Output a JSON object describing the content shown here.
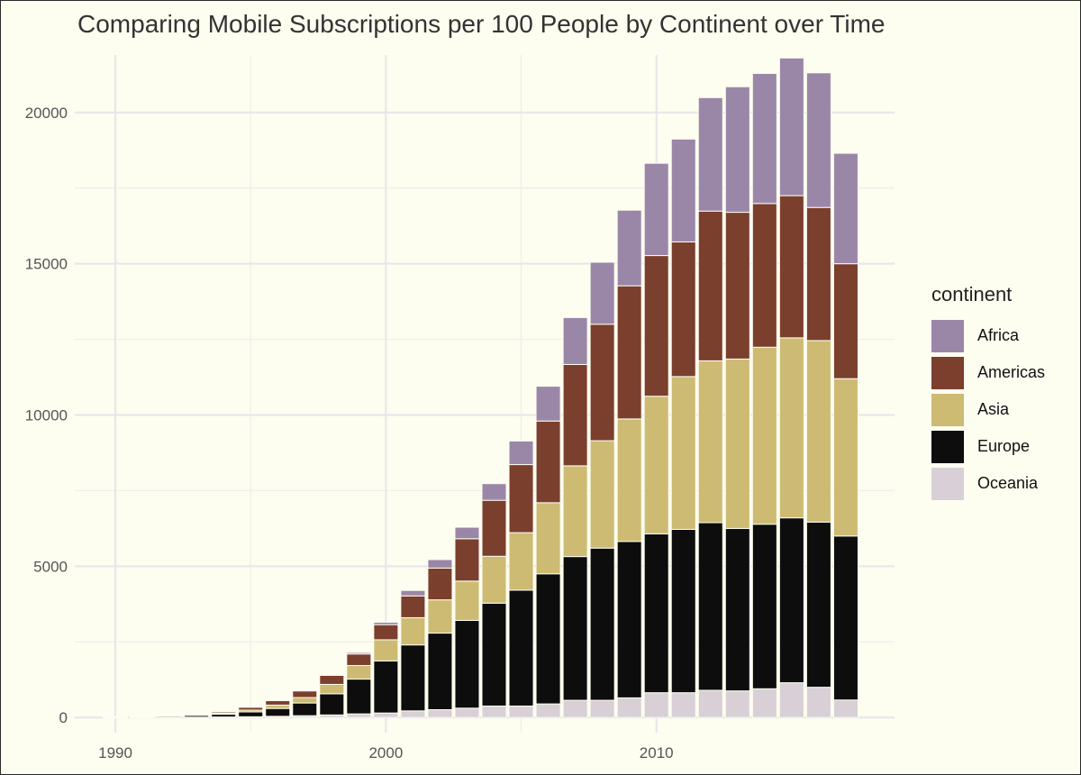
{
  "title": "Comparing Mobile Subscriptions per 100 People by Continent over Time",
  "legend": {
    "title": "continent",
    "items": [
      {
        "label": "Africa",
        "color": "#9a87a8"
      },
      {
        "label": "Americas",
        "color": "#7b3f2e"
      },
      {
        "label": "Asia",
        "color": "#cdbb73"
      },
      {
        "label": "Europe",
        "color": "#0d0d0d"
      },
      {
        "label": "Oceania",
        "color": "#d8d0d6"
      }
    ]
  },
  "chart_data": {
    "type": "bar",
    "stacked": true,
    "title": "Comparing Mobile Subscriptions per 100 People by Continent over Time",
    "xlabel": "",
    "ylabel": "",
    "x": [
      1990,
      1991,
      1992,
      1993,
      1994,
      1995,
      1996,
      1997,
      1998,
      1999,
      2000,
      2001,
      2002,
      2003,
      2004,
      2005,
      2006,
      2007,
      2008,
      2009,
      2010,
      2011,
      2012,
      2013,
      2014,
      2015,
      2016,
      2017
    ],
    "xlim": [
      1988.5,
      2018.8
    ],
    "ylim": [
      -500,
      21900
    ],
    "x_ticks": [
      1990,
      2000,
      2010
    ],
    "y_ticks": [
      0,
      5000,
      10000,
      15000,
      20000
    ],
    "grid": true,
    "legend_position": "right",
    "stack_order_bottom_to_top": [
      "Oceania",
      "Europe",
      "Asia",
      "Americas",
      "Africa"
    ],
    "series": [
      {
        "name": "Oceania",
        "color": "#d8d0d6",
        "values": [
          2,
          5,
          8,
          12,
          18,
          25,
          40,
          60,
          85,
          120,
          150,
          220,
          260,
          310,
          380,
          380,
          450,
          570,
          570,
          650,
          820,
          820,
          900,
          880,
          950,
          1150,
          1000,
          580
        ]
      },
      {
        "name": "Europe",
        "color": "#0d0d0d",
        "values": [
          15,
          25,
          40,
          60,
          90,
          160,
          260,
          420,
          700,
          1150,
          1720,
          2180,
          2530,
          2900,
          3400,
          3830,
          4300,
          4750,
          5030,
          5170,
          5250,
          5400,
          5540,
          5370,
          5440,
          5450,
          5460,
          5420
        ]
      },
      {
        "name": "Asia",
        "color": "#cdbb73",
        "values": [
          3,
          6,
          10,
          18,
          30,
          60,
          110,
          180,
          310,
          450,
          700,
          900,
          1100,
          1300,
          1550,
          1900,
          2350,
          3000,
          3550,
          4050,
          4550,
          5050,
          5350,
          5600,
          5850,
          5950,
          6000,
          5200
        ]
      },
      {
        "name": "Americas",
        "color": "#7b3f2e",
        "values": [
          8,
          14,
          22,
          35,
          55,
          100,
          150,
          220,
          300,
          380,
          500,
          720,
          1050,
          1400,
          1850,
          2250,
          2700,
          3350,
          3850,
          4400,
          4650,
          4450,
          4950,
          4850,
          4750,
          4700,
          4400,
          3800
        ]
      },
      {
        "name": "Africa",
        "color": "#9a87a8",
        "values": [
          0,
          1,
          2,
          3,
          5,
          8,
          12,
          20,
          30,
          50,
          80,
          180,
          280,
          380,
          550,
          780,
          1150,
          1550,
          2050,
          2500,
          3050,
          3400,
          3750,
          4150,
          4300,
          4550,
          4450,
          3650
        ]
      }
    ]
  }
}
